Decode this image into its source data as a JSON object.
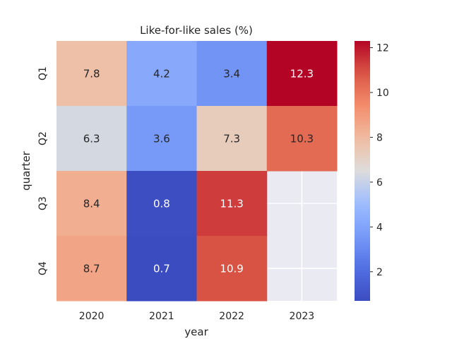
{
  "chart_data": {
    "type": "heatmap",
    "title": "Like-for-like sales (%)",
    "xlabel": "year",
    "ylabel": "quarter",
    "x_categories": [
      "2020",
      "2021",
      "2022",
      "2023"
    ],
    "y_categories": [
      "Q1",
      "Q2",
      "Q3",
      "Q4"
    ],
    "values": [
      [
        7.8,
        4.2,
        3.4,
        12.3
      ],
      [
        6.3,
        3.6,
        7.3,
        10.3
      ],
      [
        8.4,
        0.8,
        11.3,
        null
      ],
      [
        8.7,
        0.7,
        10.9,
        null
      ]
    ],
    "colormap": "coolwarm",
    "vmin": 0.7,
    "vmax": 12.3,
    "colorbar_ticks": [
      2,
      4,
      6,
      8,
      10,
      12
    ],
    "missing_color": "#eaeaf2",
    "grid": true,
    "colors": {
      "low": "#3b4cc0",
      "mid": "#dddcdc",
      "high": "#b40426",
      "background": "#eaeaf2"
    }
  }
}
